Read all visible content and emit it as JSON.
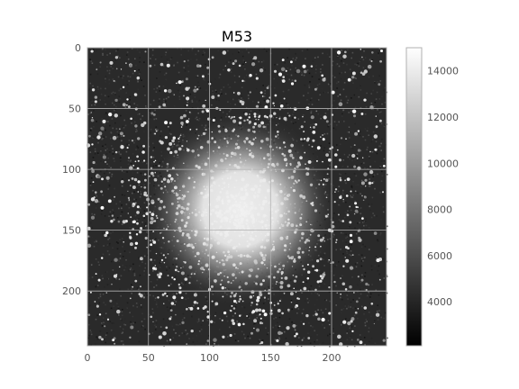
{
  "chart_data": {
    "type": "heatmap",
    "title": "M53",
    "xlabel": "",
    "ylabel": "",
    "colormap": "gray",
    "x_range": [
      0,
      245
    ],
    "y_range": [
      0,
      245
    ],
    "y_inverted": true,
    "x_ticks": [
      0,
      50,
      100,
      150,
      200
    ],
    "y_ticks": [
      0,
      50,
      100,
      150,
      200
    ],
    "grid": true,
    "image": {
      "center_x": 125,
      "center_y": 133,
      "core_radius": 38,
      "halo_radius": 95,
      "background_value": 5200,
      "core_value": 14600
    },
    "colorbar": {
      "range": [
        2100,
        15000
      ],
      "ticks": [
        4000,
        6000,
        8000,
        10000,
        12000,
        14000
      ],
      "position": "right"
    }
  },
  "colors": {
    "frame": "#b0b0b0",
    "grid": "#b0b0b0",
    "tick_text": "#555555",
    "title_text": "#000000"
  }
}
